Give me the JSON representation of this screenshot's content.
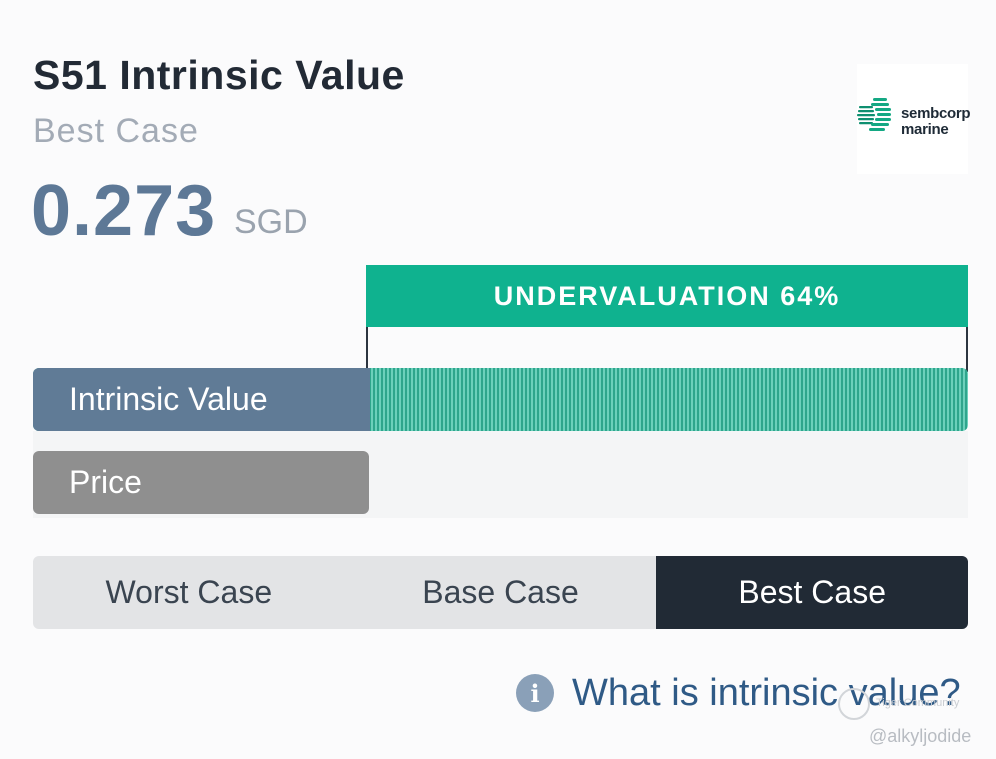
{
  "header": {
    "title": "S51 Intrinsic Value",
    "scenario": "Best Case",
    "value": "0.273",
    "currency": "SGD"
  },
  "logo": {
    "line1": "sembcorp",
    "line2": "marine",
    "icon": "sembcorp-logo-icon"
  },
  "valuation": {
    "banner": "UNDERVALUATION 64%",
    "undervaluation_percent": 64,
    "intrinsic_label": "Intrinsic Value",
    "price_label": "Price",
    "colors": {
      "banner": "#0fb28f",
      "intrinsic": "#607b96",
      "price": "#8f8f8f"
    }
  },
  "scenarios": {
    "options": [
      "Worst Case",
      "Base Case",
      "Best Case"
    ],
    "selected": "Best Case"
  },
  "help": {
    "icon": "info-icon",
    "icon_glyph": "i",
    "text": "What is intrinsic value?"
  },
  "watermark": {
    "line1": "Tiger Community",
    "line2": "@alkyljodide"
  }
}
